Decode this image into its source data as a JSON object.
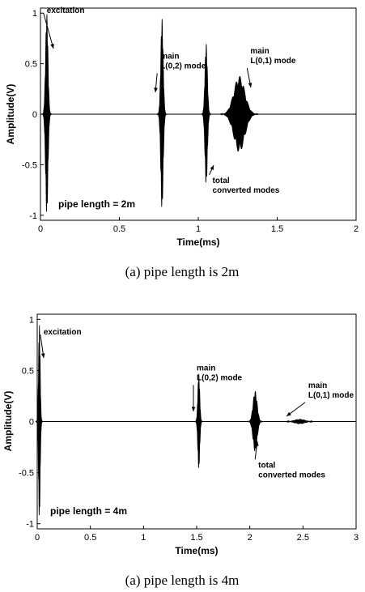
{
  "chart_data": [
    {
      "type": "line",
      "caption": "(a)  pipe  length  is  2m",
      "xlabel": "Time(ms)",
      "ylabel": "Amplitude(V)",
      "xlim": [
        0,
        2
      ],
      "ylim": [
        -1.05,
        1.05
      ],
      "xticks": [
        "0",
        "0.5",
        "1",
        "1.5",
        "2"
      ],
      "yticks": [
        "-1",
        "-0.5",
        "0",
        "0.5",
        "1"
      ],
      "plot_label": "pipe length = 2m",
      "annotations": [
        {
          "text": [
            "excitation"
          ],
          "x": 0.04,
          "y": 1.0
        },
        {
          "text": [
            "main",
            "L(0,2) mode"
          ],
          "x": 0.76,
          "y": 0.55
        },
        {
          "text": [
            "main",
            "L(0,1) mode"
          ],
          "x": 1.33,
          "y": 0.6
        },
        {
          "text": [
            "total",
            "converted modes"
          ],
          "x": 1.09,
          "y": -0.68
        }
      ],
      "series": [
        {
          "values": [
            {
              "kind": "burst",
              "center": 0.04,
              "width": 0.012,
              "amp": 1.0
            },
            {
              "kind": "burst",
              "center": 0.77,
              "width": 0.012,
              "amp": 0.95
            },
            {
              "kind": "burst",
              "center": 1.05,
              "width": 0.012,
              "amp": 0.7
            },
            {
              "kind": "hump",
              "center": 1.26,
              "width": 0.035,
              "amp": 0.38
            }
          ]
        }
      ]
    },
    {
      "type": "line",
      "caption": "(a)  pipe  length  is  4m",
      "xlabel": "Time(ms)",
      "ylabel": "Amplitude(V)",
      "xlim": [
        0,
        3
      ],
      "ylim": [
        -1.05,
        1.05
      ],
      "xticks": [
        "0",
        "0.5",
        "1",
        "1.5",
        "2",
        "2.5",
        "3"
      ],
      "yticks": [
        "-1",
        "-0.5",
        "0",
        "0.5",
        "1"
      ],
      "plot_label": "pipe length = 4m",
      "annotations": [
        {
          "text": [
            "excitation"
          ],
          "x": 0.06,
          "y": 0.85
        },
        {
          "text": [
            "main",
            "L(0,2) mode"
          ],
          "x": 1.5,
          "y": 0.5
        },
        {
          "text": [
            "main",
            "L(0,1) mode"
          ],
          "x": 2.55,
          "y": 0.33
        },
        {
          "text": [
            "total",
            "converted modes"
          ],
          "x": 2.08,
          "y": -0.45
        }
      ],
      "series": [
        {
          "values": [
            {
              "kind": "burst",
              "center": 0.02,
              "width": 0.012,
              "amp": 0.95
            },
            {
              "kind": "burst",
              "center": 1.52,
              "width": 0.014,
              "amp": 0.47
            },
            {
              "kind": "burst",
              "center": 2.05,
              "width": 0.03,
              "amp": 0.3
            },
            {
              "kind": "hump",
              "center": 2.47,
              "width": 0.05,
              "amp": 0.025
            }
          ]
        }
      ]
    }
  ]
}
